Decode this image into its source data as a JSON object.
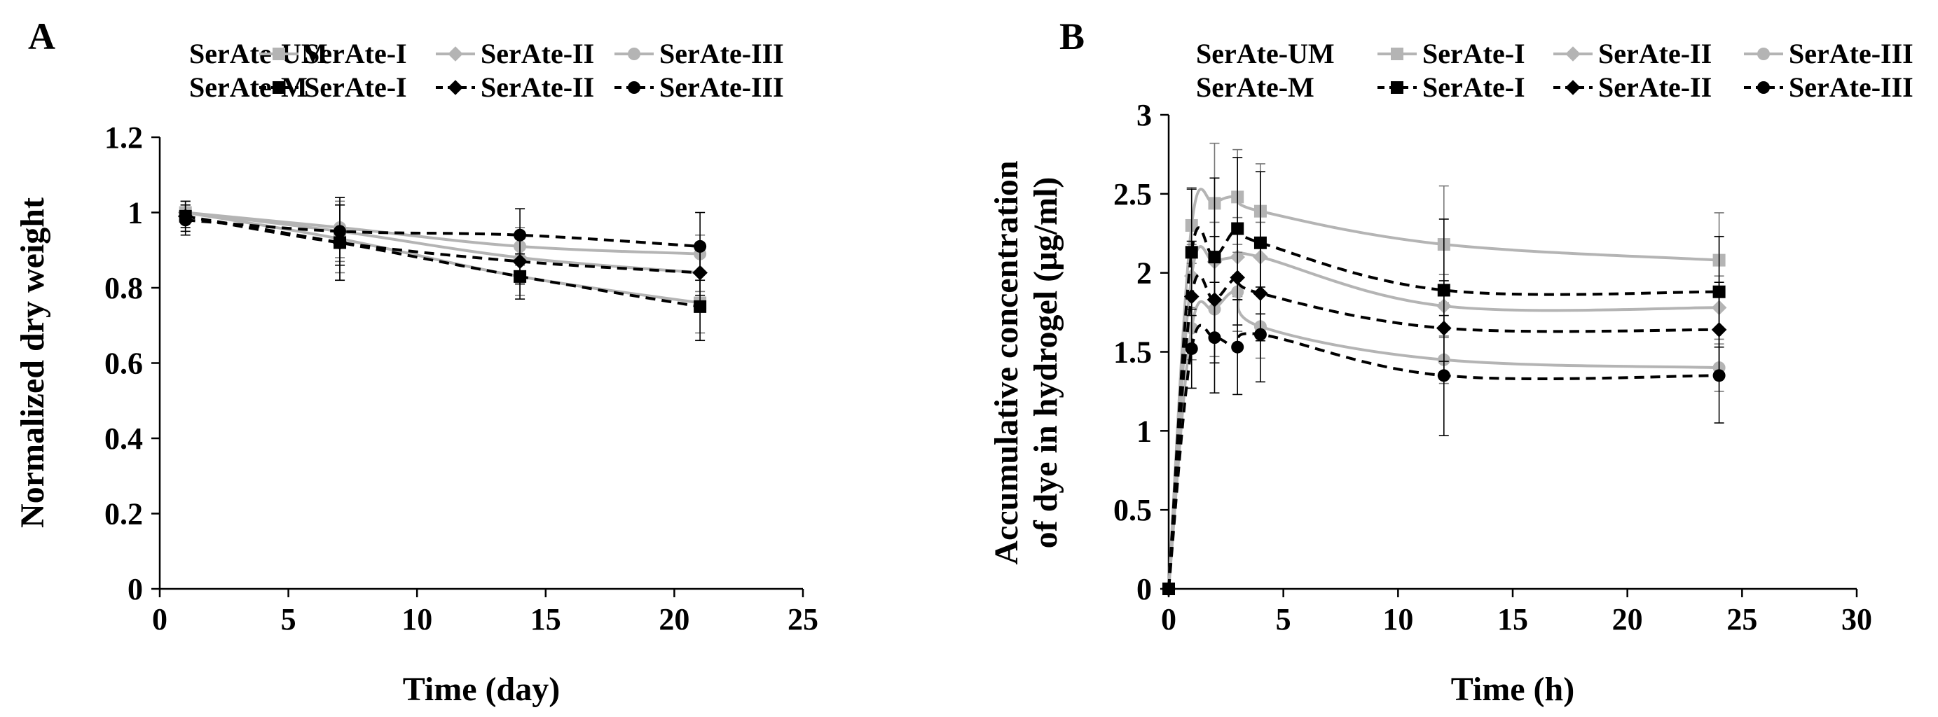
{
  "panels": [
    {
      "label": "A"
    },
    {
      "label": "B"
    }
  ],
  "legend": {
    "group_unmodified": "SerAte-UM",
    "group_modified": "SerAte-M",
    "series_names": [
      "SerAte-I",
      "SerAte-II",
      "SerAte-III"
    ],
    "colors": {
      "unmodified": "#b4b4b4",
      "modified": "#000000"
    },
    "markers": [
      "square",
      "diamond",
      "circle"
    ],
    "line_styles": {
      "unmodified": "solid",
      "modified": "dashed"
    }
  },
  "chart_data": [
    {
      "type": "line",
      "panel": "A",
      "title": "",
      "xlabel": "Time (day)",
      "ylabel": "Normalized dry weight",
      "xlim": [
        0,
        25
      ],
      "ylim": [
        0,
        1.2
      ],
      "xticks": [
        0,
        5,
        10,
        15,
        20,
        25
      ],
      "yticks": [
        0,
        0.2,
        0.4,
        0.6,
        0.8,
        1,
        1.2
      ],
      "ytick_labels": [
        "0",
        "0.2",
        "0.4",
        "0.6",
        "0.8",
        "1",
        "1.2"
      ],
      "grid": false,
      "legend_position": "top",
      "x": [
        1,
        7,
        14,
        21
      ],
      "series": [
        {
          "name": "SerAte-I",
          "group": "SerAte-UM",
          "values": [
            1.0,
            0.93,
            0.83,
            0.76
          ],
          "errors": [
            0.03,
            0.09,
            0.05,
            0.08
          ]
        },
        {
          "name": "SerAte-II",
          "group": "SerAte-UM",
          "values": [
            1.0,
            0.95,
            0.88,
            0.84
          ],
          "errors": [
            0.03,
            0.08,
            0.05,
            0.05
          ]
        },
        {
          "name": "SerAte-III",
          "group": "SerAte-UM",
          "values": [
            1.0,
            0.96,
            0.91,
            0.89
          ],
          "errors": [
            0.03,
            0.08,
            0.05,
            0.05
          ]
        },
        {
          "name": "SerAte-I",
          "group": "SerAte-M",
          "values": [
            0.99,
            0.92,
            0.83,
            0.75
          ],
          "errors": [
            0.03,
            0.1,
            0.06,
            0.09
          ]
        },
        {
          "name": "SerAte-II",
          "group": "SerAte-M",
          "values": [
            0.99,
            0.92,
            0.87,
            0.84
          ],
          "errors": [
            0.04,
            0.1,
            0.06,
            0.06
          ]
        },
        {
          "name": "SerAte-III",
          "group": "SerAte-M",
          "values": [
            0.98,
            0.95,
            0.94,
            0.91
          ],
          "errors": [
            0.04,
            0.09,
            0.07,
            0.09
          ]
        }
      ]
    },
    {
      "type": "line",
      "panel": "B",
      "title": "",
      "xlabel": "Time (h)",
      "ylabel": [
        "Accumulative  concentration",
        "of dye in hydrogel (µg/ml)"
      ],
      "xlim": [
        0,
        30
      ],
      "ylim": [
        0,
        3
      ],
      "xticks": [
        0,
        5,
        10,
        15,
        20,
        25,
        30
      ],
      "yticks": [
        0,
        0.5,
        1,
        1.5,
        2,
        2.5,
        3
      ],
      "ytick_labels": [
        "0",
        "0.5",
        "1",
        "1.5",
        "2",
        "2.5",
        "3"
      ],
      "grid": false,
      "legend_position": "top",
      "x": [
        0,
        1,
        2,
        3,
        4,
        12,
        24
      ],
      "series": [
        {
          "name": "SerAte-I",
          "group": "SerAte-UM",
          "values": [
            0,
            2.3,
            2.44,
            2.48,
            2.39,
            2.18,
            2.08
          ],
          "errors": [
            0,
            0.24,
            0.38,
            0.3,
            0.3,
            0.37,
            0.3
          ]
        },
        {
          "name": "SerAte-II",
          "group": "SerAte-UM",
          "values": [
            0,
            1.98,
            2.07,
            2.1,
            2.1,
            1.79,
            1.78
          ],
          "errors": [
            0,
            0.2,
            0.25,
            0.25,
            0.22,
            0.2,
            0.2
          ]
        },
        {
          "name": "SerAte-III",
          "group": "SerAte-UM",
          "values": [
            0,
            1.65,
            1.77,
            1.88,
            1.66,
            1.45,
            1.4
          ],
          "errors": [
            0,
            0.2,
            0.3,
            0.25,
            0.2,
            0.15,
            0.15
          ]
        },
        {
          "name": "SerAte-I",
          "group": "SerAte-M",
          "values": [
            0,
            2.13,
            2.1,
            2.28,
            2.19,
            1.89,
            1.88
          ],
          "errors": [
            0,
            0.4,
            0.5,
            0.45,
            0.45,
            0.45,
            0.35
          ]
        },
        {
          "name": "SerAte-II",
          "group": "SerAte-M",
          "values": [
            0,
            1.85,
            1.83,
            1.97,
            1.87,
            1.65,
            1.64
          ],
          "errors": [
            0,
            0.35,
            0.4,
            0.3,
            0.3,
            0.3,
            0.3
          ]
        },
        {
          "name": "SerAte-III",
          "group": "SerAte-M",
          "values": [
            0,
            1.52,
            1.59,
            1.53,
            1.61,
            1.35,
            1.35
          ],
          "errors": [
            0,
            0.25,
            0.35,
            0.3,
            0.3,
            0.38,
            0.3
          ]
        }
      ]
    }
  ]
}
